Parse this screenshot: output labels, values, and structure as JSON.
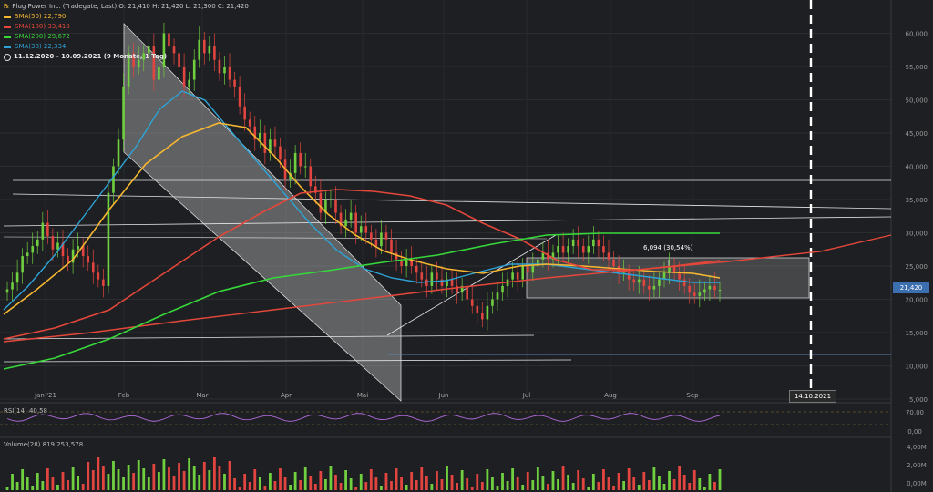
{
  "header": {
    "instrument": "Plug Power Inc. (Tradegate, Last)",
    "ohlc": "O: 21,410  H: 21,420  L: 21,300  C: 21,420",
    "sma_items": [
      {
        "label": "SMA(50)",
        "value": "22,790",
        "color": "#f5b731"
      },
      {
        "label": "SMA(100)",
        "value": "33,419",
        "color": "#e5473b"
      },
      {
        "label": "SMA(200)",
        "value": "29,672",
        "color": "#37d83a"
      },
      {
        "label": "SMA(38)",
        "value": "22,334",
        "color": "#2ea3d6"
      }
    ],
    "period": "11.12.2020 - 10.09.2021",
    "period_detail": "(9 Monate, 1 Tag)"
  },
  "last_price_label": "21,420",
  "future_date_label": "14.10.2021",
  "range_annotation": "6,094 (30,54%)",
  "rsi_legend": "RSI(14)  40,58",
  "volume_legend": "Volume(28)  819   253,578",
  "chart_data": {
    "type": "candlestick",
    "x_tick_labels": [
      "Jan '21",
      "Feb",
      "Mar",
      "Apr",
      "Mai",
      "Jun",
      "Jul",
      "Aug",
      "Sep"
    ],
    "y_tick_labels": [
      "60,000",
      "55,000",
      "50,000",
      "45,000",
      "40,000",
      "35,000",
      "30,000",
      "25,000",
      "20,000",
      "15,000",
      "10,000",
      "5,000"
    ],
    "ylim": [
      5,
      65
    ],
    "close_approx": [
      21.5,
      22.5,
      24,
      26.5,
      27,
      28,
      29,
      31.5,
      29.5,
      27.5,
      28.5,
      26.5,
      25.5,
      27.5,
      28,
      26.5,
      25.5,
      24,
      23,
      22,
      36,
      40,
      44,
      52,
      57,
      55,
      56,
      57,
      58,
      53,
      55,
      60,
      58,
      57,
      55,
      52,
      53,
      56,
      59,
      57,
      58,
      56,
      54,
      55,
      53,
      52,
      49,
      47,
      46,
      44,
      45,
      42,
      44,
      43,
      41,
      38,
      39,
      42,
      40,
      40,
      37,
      36,
      33,
      35,
      35,
      33,
      31,
      32,
      33,
      30,
      31,
      30,
      29,
      28,
      30,
      29,
      27,
      26,
      25,
      26,
      25,
      24,
      23,
      22,
      24,
      23,
      22,
      23,
      22,
      21,
      22,
      20,
      19,
      18,
      17,
      19,
      20,
      21,
      22,
      23,
      24,
      23,
      25,
      24,
      25,
      26,
      27,
      26,
      27,
      28,
      27,
      28,
      29,
      28,
      27,
      28,
      29,
      28,
      27,
      26,
      25,
      24,
      24,
      23,
      22.5,
      23,
      22,
      21.5,
      22,
      23,
      24,
      25,
      24,
      23,
      22,
      21,
      20.5,
      21,
      21.5,
      22,
      21.4,
      21.42
    ],
    "series": [
      {
        "name": "SMA(50)",
        "value": 22.79
      },
      {
        "name": "SMA(100)",
        "value": 33.419
      },
      {
        "name": "SMA(200)",
        "value": 29.672
      },
      {
        "name": "SMA(38)",
        "value": 22.334
      }
    ],
    "rsi": {
      "levels": [
        "70,00",
        "0,00"
      ],
      "value": 40.58
    },
    "volume": {
      "ticks": [
        "4,00M",
        "2,00M",
        "0,00M"
      ]
    }
  },
  "colors": {
    "up": "#6fcf3f",
    "down": "#e2453f",
    "sma50": "#f5b731",
    "sma100": "#e5473b",
    "sma200": "#37d83a",
    "sma38": "#2ea3d6",
    "rsi": "#b06ad8"
  }
}
